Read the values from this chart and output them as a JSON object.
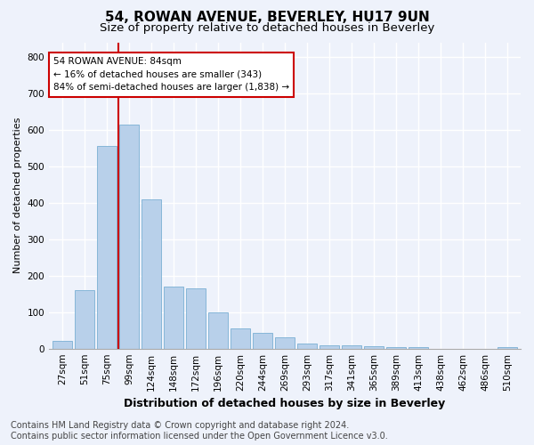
{
  "title": "54, ROWAN AVENUE, BEVERLEY, HU17 9UN",
  "subtitle": "Size of property relative to detached houses in Beverley",
  "xlabel": "Distribution of detached houses by size in Beverley",
  "ylabel": "Number of detached properties",
  "categories": [
    "27sqm",
    "51sqm",
    "75sqm",
    "99sqm",
    "124sqm",
    "148sqm",
    "172sqm",
    "196sqm",
    "220sqm",
    "244sqm",
    "269sqm",
    "293sqm",
    "317sqm",
    "341sqm",
    "365sqm",
    "389sqm",
    "413sqm",
    "438sqm",
    "462sqm",
    "486sqm",
    "510sqm"
  ],
  "values": [
    20,
    160,
    555,
    615,
    410,
    170,
    165,
    100,
    55,
    42,
    30,
    15,
    10,
    8,
    6,
    5,
    5,
    0,
    0,
    0,
    5
  ],
  "bar_color": "#b8d0ea",
  "bar_edge_color": "#7aafd4",
  "vline_color": "#cc0000",
  "vline_x": 2.5,
  "annotation_text": "54 ROWAN AVENUE: 84sqm\n← 16% of detached houses are smaller (343)\n84% of semi-detached houses are larger (1,838) →",
  "annotation_box_color": "#ffffff",
  "annotation_box_edge": "#cc0000",
  "ylim": [
    0,
    840
  ],
  "yticks": [
    0,
    100,
    200,
    300,
    400,
    500,
    600,
    700,
    800
  ],
  "footer": "Contains HM Land Registry data © Crown copyright and database right 2024.\nContains public sector information licensed under the Open Government Licence v3.0.",
  "bg_color": "#eef2fb",
  "grid_color": "#ffffff",
  "title_fontsize": 11,
  "subtitle_fontsize": 9.5,
  "xlabel_fontsize": 9,
  "ylabel_fontsize": 8,
  "tick_fontsize": 7.5,
  "footer_fontsize": 7
}
